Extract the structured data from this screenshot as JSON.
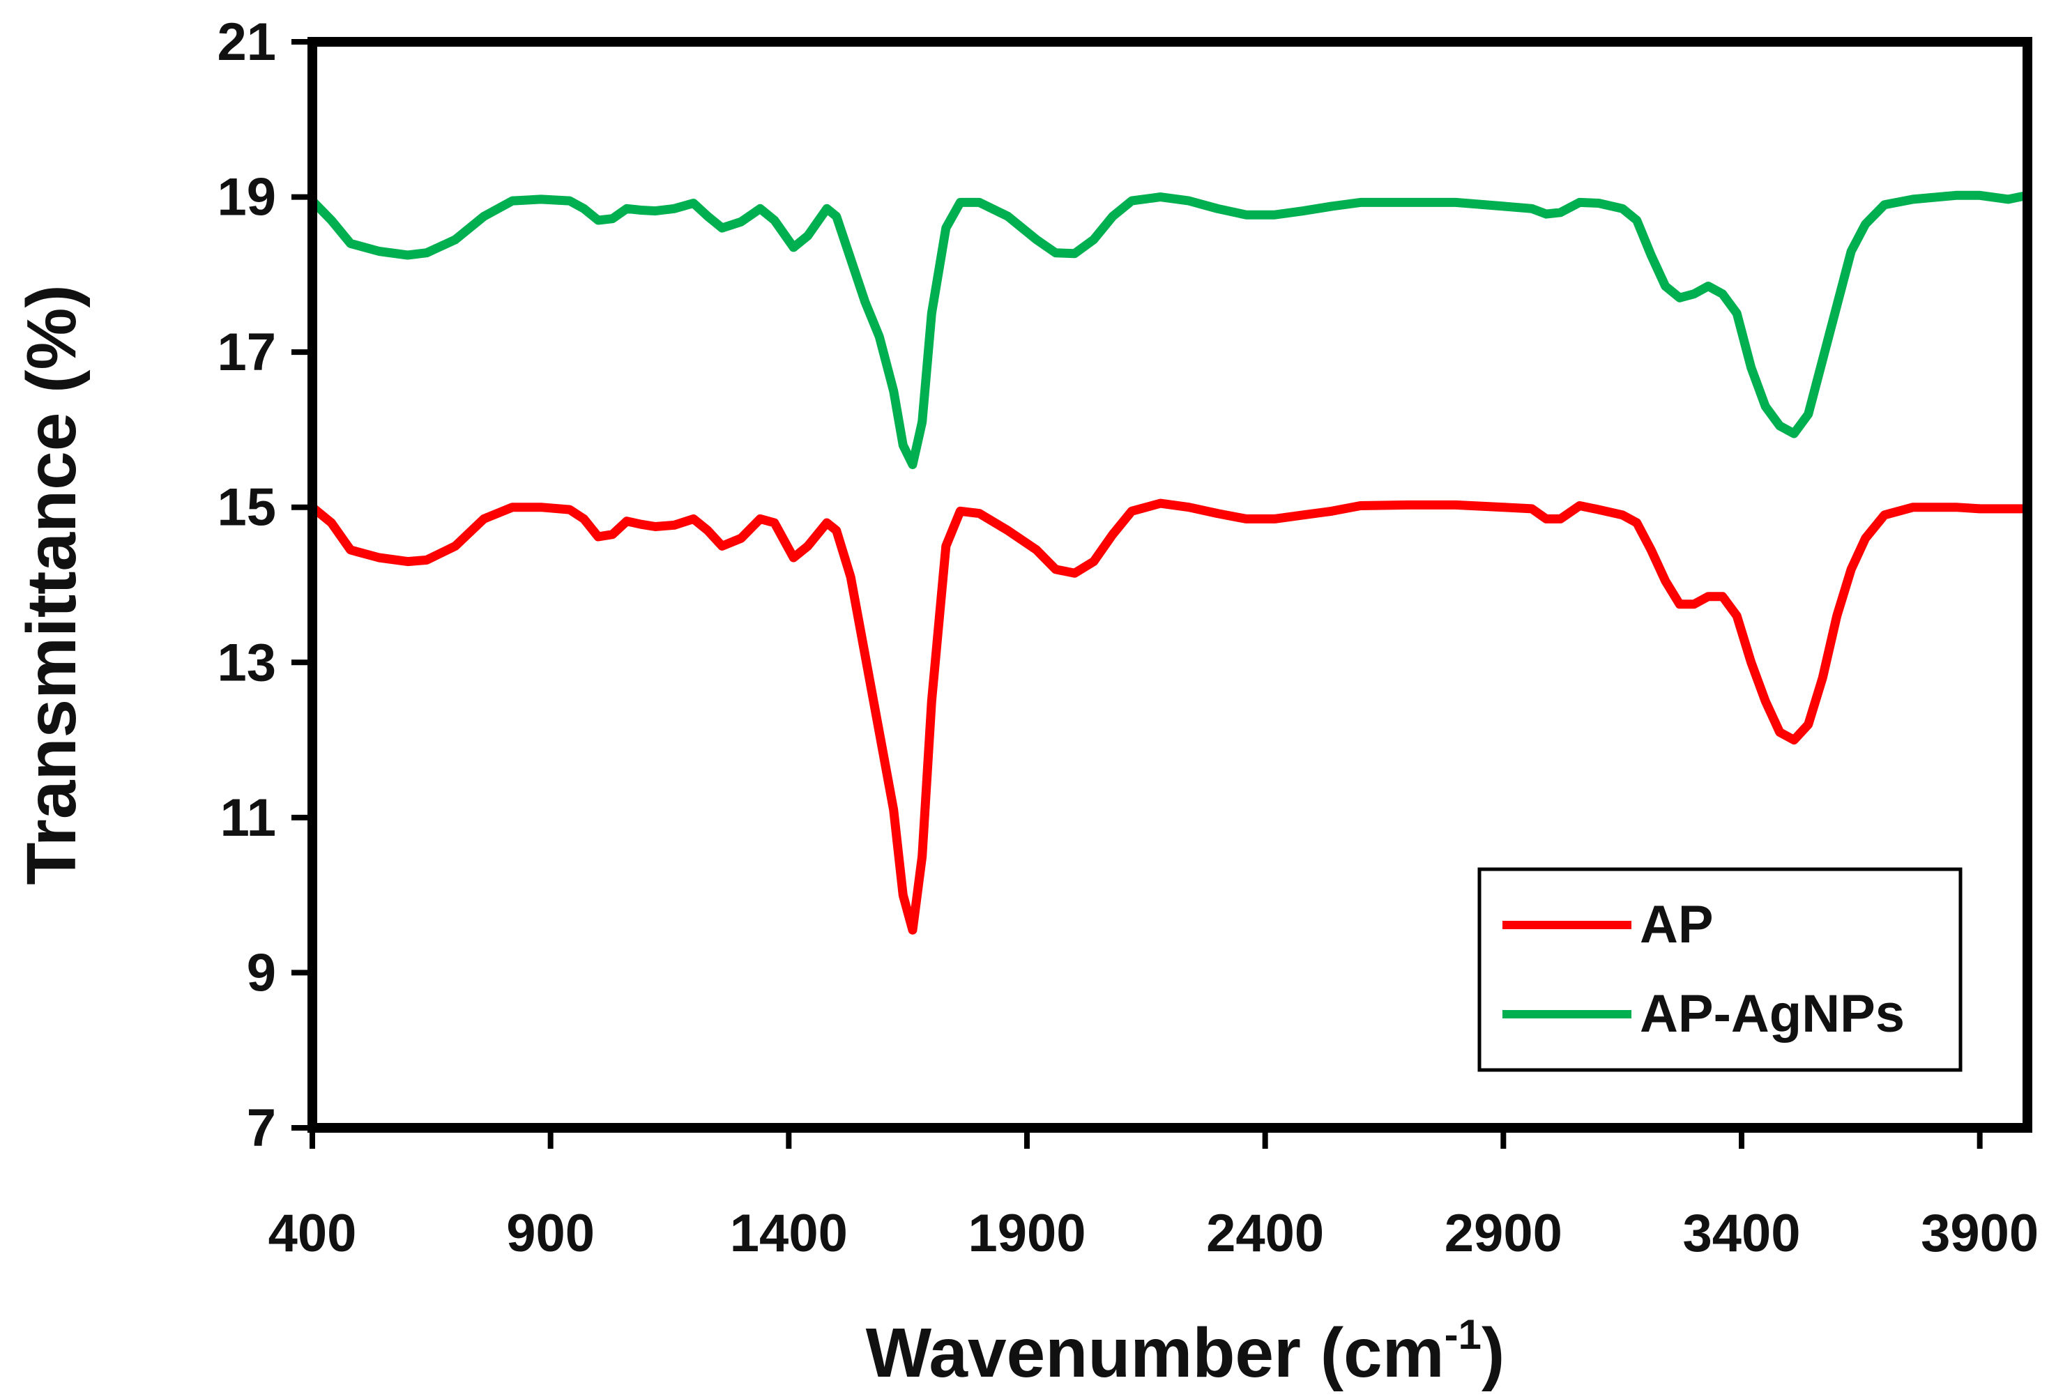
{
  "chart_data": {
    "type": "line",
    "title": "",
    "xlabel": "Wavenumber (cm",
    "xlabel_sup": "-1",
    "xlabel_end": ")",
    "ylabel": "Transmittance  (%)",
    "xlim": [
      400,
      4000
    ],
    "ylim": [
      7,
      21
    ],
    "xticks": [
      400,
      900,
      1400,
      1900,
      2400,
      2900,
      3400,
      3900
    ],
    "yticks": [
      7,
      9,
      11,
      13,
      15,
      17,
      19,
      21
    ],
    "grid": false,
    "legend_position": "bottom-right",
    "series": [
      {
        "name": "AP",
        "color": "#ff0000",
        "points": [
          [
            400,
            15
          ],
          [
            440,
            14.8
          ],
          [
            480,
            14.45
          ],
          [
            540,
            14.35
          ],
          [
            600,
            14.3
          ],
          [
            640,
            14.32
          ],
          [
            700,
            14.5
          ],
          [
            760,
            14.85
          ],
          [
            820,
            15
          ],
          [
            880,
            15
          ],
          [
            940,
            14.97
          ],
          [
            970,
            14.85
          ],
          [
            1000,
            14.62
          ],
          [
            1030,
            14.65
          ],
          [
            1060,
            14.82
          ],
          [
            1090,
            14.78
          ],
          [
            1120,
            14.75
          ],
          [
            1160,
            14.77
          ],
          [
            1200,
            14.85
          ],
          [
            1230,
            14.7
          ],
          [
            1260,
            14.5
          ],
          [
            1300,
            14.6
          ],
          [
            1340,
            14.85
          ],
          [
            1370,
            14.8
          ],
          [
            1410,
            14.35
          ],
          [
            1440,
            14.5
          ],
          [
            1480,
            14.8
          ],
          [
            1500,
            14.7
          ],
          [
            1530,
            14.1
          ],
          [
            1560,
            13.1
          ],
          [
            1590,
            12.1
          ],
          [
            1620,
            11.1
          ],
          [
            1640,
            10
          ],
          [
            1660,
            9.55
          ],
          [
            1680,
            10.5
          ],
          [
            1700,
            12.5
          ],
          [
            1730,
            14.5
          ],
          [
            1760,
            14.95
          ],
          [
            1800,
            14.92
          ],
          [
            1860,
            14.7
          ],
          [
            1920,
            14.45
          ],
          [
            1960,
            14.2
          ],
          [
            2000,
            14.15
          ],
          [
            2040,
            14.3
          ],
          [
            2080,
            14.65
          ],
          [
            2120,
            14.95
          ],
          [
            2180,
            15.05
          ],
          [
            2240,
            15
          ],
          [
            2300,
            14.92
          ],
          [
            2360,
            14.85
          ],
          [
            2420,
            14.85
          ],
          [
            2480,
            14.9
          ],
          [
            2540,
            14.95
          ],
          [
            2600,
            15.02
          ],
          [
            2700,
            15.03
          ],
          [
            2800,
            15.03
          ],
          [
            2900,
            15
          ],
          [
            2960,
            14.98
          ],
          [
            2990,
            14.85
          ],
          [
            3020,
            14.85
          ],
          [
            3060,
            15.02
          ],
          [
            3100,
            14.97
          ],
          [
            3150,
            14.9
          ],
          [
            3180,
            14.8
          ],
          [
            3210,
            14.45
          ],
          [
            3240,
            14.05
          ],
          [
            3270,
            13.75
          ],
          [
            3300,
            13.75
          ],
          [
            3330,
            13.85
          ],
          [
            3360,
            13.85
          ],
          [
            3390,
            13.6
          ],
          [
            3420,
            13
          ],
          [
            3450,
            12.5
          ],
          [
            3480,
            12.1
          ],
          [
            3510,
            12
          ],
          [
            3540,
            12.2
          ],
          [
            3570,
            12.8
          ],
          [
            3600,
            13.6
          ],
          [
            3630,
            14.2
          ],
          [
            3660,
            14.6
          ],
          [
            3700,
            14.9
          ],
          [
            3760,
            15
          ],
          [
            3850,
            15
          ],
          [
            3900,
            14.98
          ],
          [
            4000,
            14.98
          ]
        ]
      },
      {
        "name": "AP-AgNPs",
        "color": "#00b050",
        "points": [
          [
            400,
            18.95
          ],
          [
            440,
            18.7
          ],
          [
            480,
            18.4
          ],
          [
            540,
            18.3
          ],
          [
            600,
            18.25
          ],
          [
            640,
            18.28
          ],
          [
            700,
            18.45
          ],
          [
            760,
            18.75
          ],
          [
            820,
            18.95
          ],
          [
            880,
            18.97
          ],
          [
            940,
            18.95
          ],
          [
            970,
            18.85
          ],
          [
            1000,
            18.7
          ],
          [
            1030,
            18.72
          ],
          [
            1060,
            18.85
          ],
          [
            1090,
            18.83
          ],
          [
            1120,
            18.82
          ],
          [
            1160,
            18.85
          ],
          [
            1200,
            18.92
          ],
          [
            1230,
            18.75
          ],
          [
            1260,
            18.6
          ],
          [
            1300,
            18.68
          ],
          [
            1340,
            18.85
          ],
          [
            1370,
            18.7
          ],
          [
            1410,
            18.35
          ],
          [
            1440,
            18.5
          ],
          [
            1480,
            18.85
          ],
          [
            1500,
            18.75
          ],
          [
            1530,
            18.2
          ],
          [
            1560,
            17.65
          ],
          [
            1590,
            17.2
          ],
          [
            1620,
            16.5
          ],
          [
            1640,
            15.8
          ],
          [
            1660,
            15.55
          ],
          [
            1680,
            16.1
          ],
          [
            1700,
            17.5
          ],
          [
            1730,
            18.6
          ],
          [
            1760,
            18.93
          ],
          [
            1800,
            18.93
          ],
          [
            1860,
            18.75
          ],
          [
            1920,
            18.45
          ],
          [
            1960,
            18.28
          ],
          [
            2000,
            18.27
          ],
          [
            2040,
            18.45
          ],
          [
            2080,
            18.75
          ],
          [
            2120,
            18.95
          ],
          [
            2180,
            19
          ],
          [
            2240,
            18.95
          ],
          [
            2300,
            18.85
          ],
          [
            2360,
            18.77
          ],
          [
            2420,
            18.77
          ],
          [
            2480,
            18.82
          ],
          [
            2540,
            18.88
          ],
          [
            2600,
            18.93
          ],
          [
            2700,
            18.93
          ],
          [
            2800,
            18.93
          ],
          [
            2900,
            18.88
          ],
          [
            2960,
            18.85
          ],
          [
            2990,
            18.78
          ],
          [
            3020,
            18.8
          ],
          [
            3060,
            18.93
          ],
          [
            3100,
            18.92
          ],
          [
            3150,
            18.85
          ],
          [
            3180,
            18.7
          ],
          [
            3210,
            18.25
          ],
          [
            3240,
            17.85
          ],
          [
            3270,
            17.7
          ],
          [
            3300,
            17.75
          ],
          [
            3330,
            17.85
          ],
          [
            3360,
            17.75
          ],
          [
            3390,
            17.5
          ],
          [
            3420,
            16.8
          ],
          [
            3450,
            16.3
          ],
          [
            3480,
            16.05
          ],
          [
            3510,
            15.95
          ],
          [
            3540,
            16.2
          ],
          [
            3570,
            16.9
          ],
          [
            3600,
            17.6
          ],
          [
            3630,
            18.3
          ],
          [
            3660,
            18.65
          ],
          [
            3700,
            18.9
          ],
          [
            3760,
            18.97
          ],
          [
            3850,
            19.02
          ],
          [
            3900,
            19.02
          ],
          [
            3960,
            18.97
          ],
          [
            4000,
            19.02
          ]
        ]
      }
    ]
  }
}
